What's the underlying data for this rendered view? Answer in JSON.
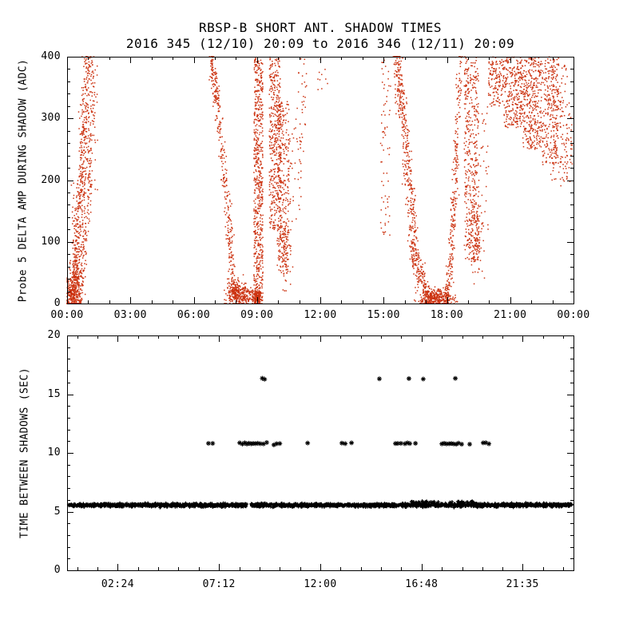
{
  "page": {
    "background": "#ffffff"
  },
  "chart_data": [
    {
      "type": "scatter",
      "title": "RBSP-B SHORT ANT. SHADOW TIMES",
      "subtitle": "2016 345 (12/10) 20:09 to 2016 346 (12/11) 20:09",
      "ylabel": "Probe 5 DELTA AMP DURING SHADOW (ADC)",
      "xlabel": "",
      "xlim": [
        0,
        24
      ],
      "ylim": [
        0,
        400
      ],
      "x_ticks": [
        {
          "v": 0,
          "label": "00:00"
        },
        {
          "v": 3,
          "label": "03:00"
        },
        {
          "v": 6,
          "label": "06:00"
        },
        {
          "v": 9,
          "label": "09:00"
        },
        {
          "v": 12,
          "label": "12:00"
        },
        {
          "v": 15,
          "label": "15:00"
        },
        {
          "v": 18,
          "label": "18:00"
        },
        {
          "v": 21,
          "label": "21:00"
        },
        {
          "v": 24,
          "label": "00:00"
        }
      ],
      "x_minor_step": 1,
      "y_ticks": [
        {
          "v": 0,
          "label": "0"
        },
        {
          "v": 100,
          "label": "100"
        },
        {
          "v": 200,
          "label": "200"
        },
        {
          "v": 300,
          "label": "300"
        },
        {
          "v": 400,
          "label": "400"
        }
      ],
      "y_minor_step": 20,
      "marker": "dot",
      "color": "#cc3311",
      "axis_color": "#000000",
      "grid": false,
      "legend": "none",
      "series": [
        {
          "name": "probe5-delta-amp-shadow-points",
          "clusters": [
            {
              "kind": "curve",
              "n": 550,
              "x0": 0.12,
              "x1": 0.95,
              "y0": 2,
              "y1": 400,
              "p": 1.7,
              "jx": 0.1,
              "jy": 15
            },
            {
              "kind": "curve",
              "n": 300,
              "x0": 0.45,
              "x1": 1.3,
              "y0": 0,
              "y1": 400,
              "p": 1.6,
              "jx": 0.1,
              "jy": 18
            },
            {
              "kind": "blob",
              "n": 160,
              "cx": 0.3,
              "cy": 22,
              "sx": 0.16,
              "sy": 16
            },
            {
              "kind": "box",
              "n": 40,
              "x0": 0.85,
              "x1": 1.45,
              "y0": 180,
              "y1": 400
            },
            {
              "kind": "box",
              "n": 20,
              "x0": 0.2,
              "x1": 0.5,
              "y0": 60,
              "y1": 200
            },
            {
              "kind": "curve",
              "n": 320,
              "x0": 6.78,
              "x1": 7.9,
              "y0": 398,
              "y1": 25,
              "p": 1.35,
              "jx": 0.07,
              "jy": 18
            },
            {
              "kind": "blob",
              "n": 260,
              "cx": 8.05,
              "cy": 16,
              "sx": 0.25,
              "sy": 10
            },
            {
              "kind": "box",
              "n": 70,
              "x0": 8.3,
              "x1": 8.85,
              "y0": 0,
              "y1": 22
            },
            {
              "kind": "box",
              "n": 600,
              "x0": 8.85,
              "x1": 9.28,
              "y0": 4,
              "y1": 398
            },
            {
              "kind": "blob",
              "n": 150,
              "cx": 9.02,
              "cy": 10,
              "sx": 0.1,
              "sy": 7
            },
            {
              "kind": "box",
              "n": 420,
              "x0": 9.58,
              "x1": 10.15,
              "y0": 120,
              "y1": 400
            },
            {
              "kind": "box",
              "n": 260,
              "x0": 9.95,
              "x1": 10.52,
              "y0": 55,
              "y1": 330
            },
            {
              "kind": "blob",
              "n": 90,
              "cx": 10.32,
              "cy": 85,
              "sx": 0.14,
              "sy": 28
            },
            {
              "kind": "box",
              "n": 40,
              "x0": 10.5,
              "x1": 11.1,
              "y0": 130,
              "y1": 300
            },
            {
              "kind": "box",
              "n": 28,
              "x0": 10.9,
              "x1": 11.35,
              "y0": 240,
              "y1": 400
            },
            {
              "kind": "box",
              "n": 10,
              "x0": 11.85,
              "x1": 12.35,
              "y0": 345,
              "y1": 398
            },
            {
              "kind": "box",
              "n": 65,
              "x0": 14.85,
              "x1": 15.3,
              "y0": 95,
              "y1": 400
            },
            {
              "kind": "curve",
              "n": 420,
              "x0": 15.55,
              "x1": 16.55,
              "y0": 400,
              "y1": 60,
              "p": 1.25,
              "jx": 0.09,
              "jy": 26
            },
            {
              "kind": "curve",
              "n": 160,
              "x0": 16.35,
              "x1": 17.15,
              "y0": 90,
              "y1": 8,
              "p": 1.0,
              "jx": 0.1,
              "jy": 10
            },
            {
              "kind": "blob",
              "n": 320,
              "cx": 17.45,
              "cy": 9,
              "sx": 0.4,
              "sy": 7
            },
            {
              "kind": "curve",
              "n": 300,
              "x0": 17.92,
              "x1": 18.62,
              "y0": 2,
              "y1": 400,
              "p": 1.75,
              "jx": 0.07,
              "jy": 16
            },
            {
              "kind": "box",
              "n": 420,
              "x0": 18.82,
              "x1": 19.5,
              "y0": 70,
              "y1": 400
            },
            {
              "kind": "blob",
              "n": 90,
              "cx": 19.42,
              "cy": 95,
              "sx": 0.15,
              "sy": 30
            },
            {
              "kind": "box",
              "n": 35,
              "x0": 19.5,
              "x1": 20.0,
              "y0": 120,
              "y1": 320
            },
            {
              "kind": "box",
              "n": 140,
              "x0": 19.95,
              "x1": 20.7,
              "y0": 320,
              "y1": 400
            },
            {
              "kind": "box",
              "n": 260,
              "x0": 20.7,
              "x1": 21.6,
              "y0": 285,
              "y1": 400
            },
            {
              "kind": "box",
              "n": 340,
              "x0": 21.6,
              "x1": 22.5,
              "y0": 250,
              "y1": 400
            },
            {
              "kind": "box",
              "n": 260,
              "x0": 22.5,
              "x1": 23.3,
              "y0": 225,
              "y1": 400
            },
            {
              "kind": "box",
              "n": 90,
              "x0": 22.9,
              "x1": 23.7,
              "y0": 200,
              "y1": 390
            },
            {
              "kind": "box",
              "n": 55,
              "x0": 23.35,
              "x1": 23.95,
              "y0": 190,
              "y1": 330
            }
          ]
        }
      ]
    },
    {
      "type": "scatter",
      "title": "",
      "ylabel": "TIME BETWEEN SHADOWS (SEC)",
      "xlabel": "",
      "xlim": [
        0,
        24
      ],
      "ylim": [
        0,
        20
      ],
      "x_ticks": [
        {
          "v": 2.4,
          "label": "02:24"
        },
        {
          "v": 7.2,
          "label": "07:12"
        },
        {
          "v": 12,
          "label": "12:00"
        },
        {
          "v": 16.8,
          "label": "16:48"
        },
        {
          "v": 21.583,
          "label": "21:35"
        }
      ],
      "x_minor_step": 0.96,
      "y_ticks": [
        {
          "v": 0,
          "label": "0"
        },
        {
          "v": 5,
          "label": "5"
        },
        {
          "v": 10,
          "label": "10"
        },
        {
          "v": 15,
          "label": "15"
        },
        {
          "v": 20,
          "label": "20"
        }
      ],
      "y_minor_step": 1,
      "marker": "plus",
      "color": "#000000",
      "axis_color": "#000000",
      "grid": false,
      "legend": "none",
      "series": [
        {
          "name": "time-between-shadows-5.5s-band",
          "marker": "plus",
          "clusters": [
            {
              "kind": "band",
              "y": 5.55,
              "jitter": 0.07,
              "per_hour": 95,
              "segments": [
                [
                  0.06,
                  8.52
                ],
                [
                  8.72,
                  23.92
                ]
              ]
            },
            {
              "kind": "band",
              "y": 5.8,
              "jitter": 0.05,
              "per_hour": 20,
              "segments": [
                [
                  16.2,
                  17.6
                ],
                [
                  18.1,
                  19.35
                ]
              ]
            }
          ]
        },
        {
          "name": "time-between-shadows-10.8s",
          "marker": "asterisk",
          "y": 10.8,
          "x": [
            6.7,
            6.9,
            8.18,
            8.31,
            8.42,
            8.52,
            8.62,
            8.72,
            8.82,
            8.93,
            9.04,
            9.16,
            9.31,
            9.46,
            9.8,
            9.93,
            10.08,
            11.4,
            13.02,
            13.18,
            13.48,
            15.56,
            15.67,
            15.82,
            16.01,
            16.13,
            16.24,
            16.51,
            17.76,
            17.87,
            17.98,
            18.1,
            18.21,
            18.32,
            18.44,
            18.55,
            18.7,
            19.08,
            19.72,
            19.84,
            19.99
          ]
        },
        {
          "name": "time-between-shadows-16.3s",
          "marker": "asterisk",
          "y": 16.3,
          "x": [
            9.25,
            9.36,
            14.8,
            16.2,
            16.88,
            18.4
          ]
        }
      ]
    }
  ]
}
